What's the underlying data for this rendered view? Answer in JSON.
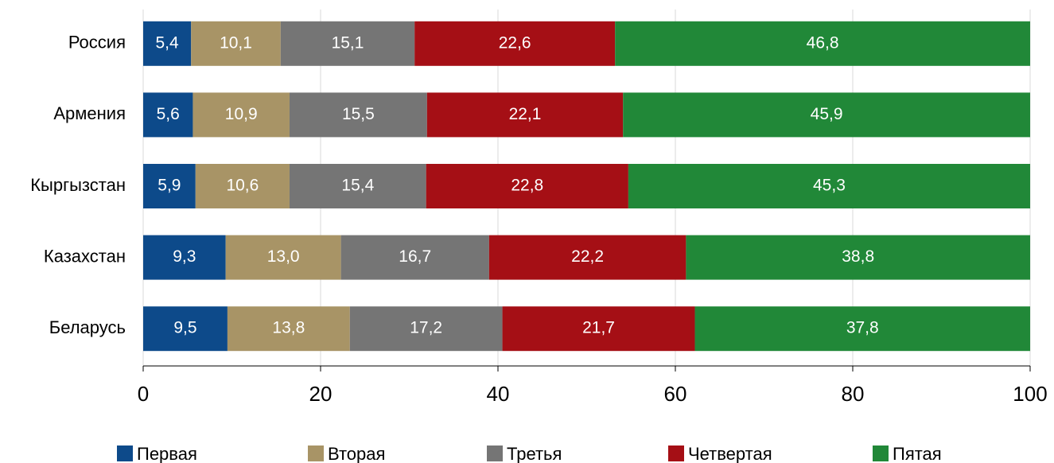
{
  "chart_data": {
    "type": "stacked-bar-horizontal",
    "categories": [
      "Россия",
      "Армения",
      "Кыргызстан",
      "Казахстан",
      "Беларусь"
    ],
    "series": [
      {
        "name": "Первая",
        "color": "#0d4a8a",
        "values": [
          5.4,
          5.6,
          5.9,
          9.3,
          9.5
        ],
        "value_labels": [
          "5,4",
          "5,6",
          "5,9",
          "9,3",
          "9,5"
        ]
      },
      {
        "name": "Вторая",
        "color": "#a89466",
        "values": [
          10.1,
          10.9,
          10.6,
          13.0,
          13.8
        ],
        "value_labels": [
          "10,1",
          "10,9",
          "10,6",
          "13,0",
          "13,8"
        ]
      },
      {
        "name": "Третья",
        "color": "#757575",
        "values": [
          15.1,
          15.5,
          15.4,
          16.7,
          17.2
        ],
        "value_labels": [
          "15,1",
          "15,5",
          "15,4",
          "16,7",
          "17,2"
        ]
      },
      {
        "name": "Четвертая",
        "color": "#a50f15",
        "values": [
          22.6,
          22.1,
          22.8,
          22.2,
          21.7
        ],
        "value_labels": [
          "22,6",
          "22,1",
          "22,8",
          "22,2",
          "21,7"
        ]
      },
      {
        "name": "Пятая",
        "color": "#218838",
        "values": [
          46.8,
          45.9,
          45.3,
          38.8,
          37.8
        ],
        "value_labels": [
          "46,8",
          "45,9",
          "45,3",
          "38,8",
          "37,8"
        ]
      }
    ],
    "xlim": [
      0,
      100
    ],
    "xticks": [
      0,
      20,
      40,
      60,
      80,
      100
    ],
    "grid": true,
    "legend": "bottom"
  }
}
